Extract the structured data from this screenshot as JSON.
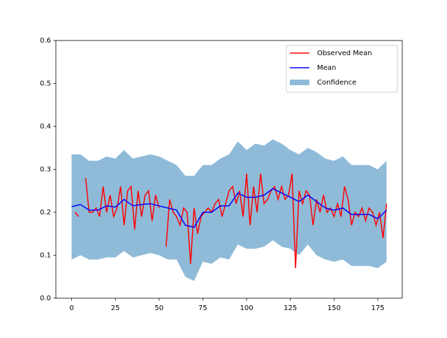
{
  "chart_data": {
    "type": "line",
    "xlim": [
      -9,
      189
    ],
    "ylim": [
      0,
      0.6
    ],
    "xticks": [
      0,
      25,
      50,
      75,
      100,
      125,
      150,
      175
    ],
    "yticks": [
      {
        "value": 0,
        "label": "0.0"
      },
      0.1,
      0.2,
      0.3,
      0.4,
      0.5,
      0.6
    ],
    "legend": "upper right",
    "series": [
      {
        "name": "Observed Mean",
        "color": "#ff0000",
        "x": [
          2,
          4,
          6,
          8,
          10,
          12,
          14,
          16,
          18,
          20,
          22,
          24,
          26,
          28,
          30,
          32,
          34,
          36,
          38,
          40,
          42,
          44,
          46,
          48,
          50,
          52,
          54,
          56,
          58,
          60,
          62,
          64,
          66,
          68,
          70,
          72,
          74,
          76,
          78,
          80,
          82,
          84,
          86,
          88,
          90,
          92,
          94,
          96,
          98,
          100,
          102,
          104,
          106,
          108,
          110,
          112,
          114,
          116,
          118,
          120,
          122,
          124,
          126,
          128,
          130,
          132,
          134,
          136,
          138,
          140,
          142,
          144,
          146,
          148,
          150,
          152,
          154,
          156,
          158,
          160,
          162,
          164,
          166,
          168,
          170,
          172,
          174,
          176,
          178,
          180
        ],
        "values": [
          0.2,
          0.19,
          null,
          0.28,
          0.2,
          0.2,
          0.21,
          0.19,
          0.26,
          0.2,
          0.24,
          0.19,
          0.21,
          0.26,
          0.17,
          0.25,
          0.26,
          0.16,
          0.25,
          0.19,
          0.24,
          0.25,
          0.18,
          0.24,
          0.21,
          null,
          0.12,
          0.23,
          0.2,
          0.19,
          0.17,
          0.21,
          0.2,
          0.08,
          0.21,
          0.15,
          0.19,
          0.2,
          0.21,
          0.2,
          0.22,
          0.23,
          0.19,
          0.22,
          0.25,
          0.26,
          0.22,
          0.25,
          0.19,
          0.29,
          0.17,
          0.26,
          0.2,
          0.29,
          0.22,
          0.23,
          0.25,
          0.26,
          0.23,
          0.26,
          0.23,
          0.24,
          0.29,
          0.07,
          0.25,
          0.22,
          0.25,
          0.24,
          0.17,
          0.23,
          0.2,
          0.24,
          0.2,
          0.21,
          0.19,
          0.22,
          0.19,
          0.26,
          0.23,
          0.17,
          0.2,
          0.19,
          0.21,
          0.18,
          0.21,
          0.2,
          0.17,
          0.2,
          0.14,
          0.22
        ]
      },
      {
        "name": "Mean",
        "color": "#0000ff",
        "x": [
          0,
          5,
          10,
          15,
          20,
          25,
          30,
          35,
          40,
          45,
          50,
          55,
          60,
          65,
          70,
          75,
          80,
          85,
          90,
          95,
          100,
          105,
          110,
          115,
          120,
          125,
          130,
          135,
          140,
          145,
          150,
          155,
          160,
          165,
          170,
          175,
          180
        ],
        "values": [
          0.213,
          0.218,
          0.205,
          0.205,
          0.215,
          0.212,
          0.23,
          0.215,
          0.218,
          0.22,
          0.215,
          0.21,
          0.205,
          0.17,
          0.165,
          0.2,
          0.2,
          0.215,
          0.215,
          0.245,
          0.235,
          0.235,
          0.24,
          0.255,
          0.245,
          0.235,
          0.225,
          0.24,
          0.225,
          0.21,
          0.205,
          0.21,
          0.195,
          0.195,
          0.195,
          0.185,
          0.205
        ]
      },
      {
        "name": "Confidence",
        "color": "#8fbbd9",
        "x": [
          0,
          5,
          10,
          15,
          20,
          25,
          30,
          35,
          40,
          45,
          50,
          55,
          60,
          65,
          70,
          75,
          80,
          85,
          90,
          95,
          100,
          105,
          110,
          115,
          120,
          125,
          130,
          135,
          140,
          145,
          150,
          155,
          160,
          165,
          170,
          175,
          180
        ],
        "upper": [
          0.335,
          0.335,
          0.32,
          0.32,
          0.33,
          0.325,
          0.345,
          0.325,
          0.33,
          0.335,
          0.33,
          0.32,
          0.31,
          0.285,
          0.285,
          0.31,
          0.31,
          0.325,
          0.335,
          0.365,
          0.345,
          0.36,
          0.355,
          0.37,
          0.36,
          0.345,
          0.335,
          0.35,
          0.34,
          0.325,
          0.32,
          0.33,
          0.31,
          0.31,
          0.31,
          0.3,
          0.32
        ],
        "lower": [
          0.09,
          0.1,
          0.09,
          0.09,
          0.095,
          0.095,
          0.11,
          0.095,
          0.1,
          0.105,
          0.1,
          0.09,
          0.09,
          0.05,
          0.04,
          0.085,
          0.08,
          0.095,
          0.09,
          0.125,
          0.115,
          0.115,
          0.12,
          0.135,
          0.12,
          0.115,
          0.1,
          0.125,
          0.1,
          0.09,
          0.085,
          0.09,
          0.075,
          0.075,
          0.075,
          0.07,
          0.085
        ]
      }
    ]
  }
}
